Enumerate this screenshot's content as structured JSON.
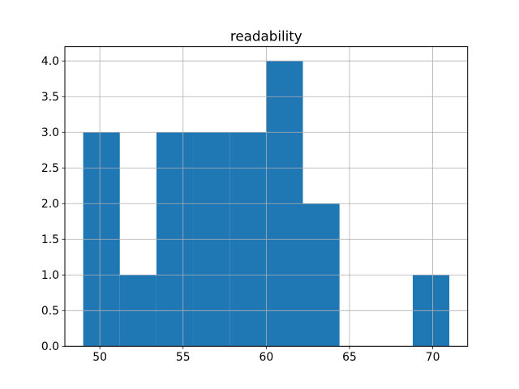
{
  "chart_data": {
    "type": "bar",
    "subtype": "histogram",
    "title": "readability",
    "xlabel": "",
    "ylabel": "",
    "bin_edges": [
      49.0,
      51.2,
      53.4,
      55.6,
      57.8,
      60.0,
      62.2,
      64.4,
      66.6,
      68.8,
      71.0
    ],
    "counts": [
      3,
      1,
      3,
      3,
      3,
      4,
      2,
      0,
      0,
      1
    ],
    "xlim": [
      47.9,
      72.1
    ],
    "ylim": [
      0,
      4.2
    ],
    "xtick_values": [
      50,
      55,
      60,
      65,
      70
    ],
    "xtick_labels": [
      "50",
      "55",
      "60",
      "65",
      "70"
    ],
    "ytick_values": [
      0,
      0.5,
      1,
      1.5,
      2,
      2.5,
      3,
      3.5,
      4
    ],
    "ytick_labels": [
      "0.0",
      "0.5",
      "1.0",
      "1.5",
      "2.0",
      "2.5",
      "3.0",
      "3.5",
      "4.0"
    ],
    "grid": true,
    "legend": false,
    "grid_on_top_of_bars": true,
    "bar_color": "#1f77b4",
    "grid_color": "#b0b0b0",
    "spine_color": "#000000",
    "text_color": "#000000",
    "background": "#ffffff"
  }
}
